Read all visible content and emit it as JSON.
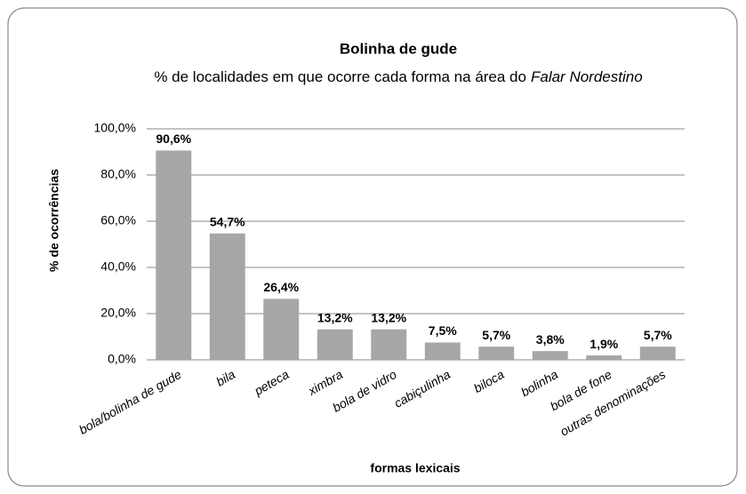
{
  "chart_data": {
    "type": "bar",
    "title": "Bolinha de gude",
    "subtitle": "% de localidades em que ocorre cada forma na área do",
    "subtitle_emphasis": "Falar Nordestino",
    "x_label": "formas lexicais",
    "y_label": "% de ocorrências",
    "categories": [
      "bola/bolinha de gude",
      "bila",
      "peteca",
      "ximbra",
      "bola de vidro",
      "cabiçulinha",
      "biloca",
      "bolinha",
      "bola de fone",
      "outras denominações"
    ],
    "values": [
      90.6,
      54.7,
      26.4,
      13.2,
      13.2,
      7.5,
      5.7,
      3.8,
      1.9,
      5.7
    ],
    "value_labels": [
      "90,6%",
      "54,7%",
      "26,4%",
      "13,2%",
      "13,2%",
      "7,5%",
      "5,7%",
      "3,8%",
      "1,9%",
      "5,7%"
    ],
    "color": "#a6a6a6",
    "ylim": [
      0,
      100
    ],
    "yticks": [
      {
        "value": 0,
        "label": "0,0%"
      },
      {
        "value": 20,
        "label": "20,0%"
      },
      {
        "value": 40,
        "label": "40,0%"
      },
      {
        "value": 60,
        "label": "60,0%"
      },
      {
        "value": 80,
        "label": "80,0%"
      },
      {
        "value": 100,
        "label": "100,0%"
      }
    ],
    "grid": true
  }
}
